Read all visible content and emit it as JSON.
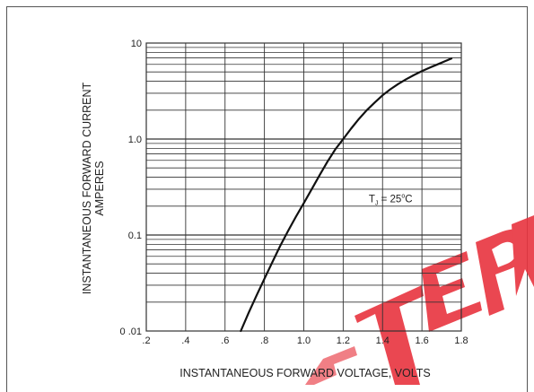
{
  "colors": {
    "grid": "#333333",
    "curve": "#111111",
    "watermark": "#e8343f"
  },
  "watermark": {
    "text": "TEPM"
  },
  "chart_data": {
    "type": "line",
    "title": "",
    "xlabel": "INSTANTANEOUS FORWARD VOLTAGE, VOLTS",
    "ylabel_line1": "INSTANTANEOUS FORWARD CURRENT",
    "ylabel_line2": "AMPERES",
    "xlim": [
      0.2,
      1.8
    ],
    "ylim": [
      0.01,
      10
    ],
    "yscale": "log",
    "grid": true,
    "x_tick_labels": [
      ".2",
      ".4",
      ".6",
      ".8",
      "1.0",
      "1.2",
      "1.4",
      "1.6",
      "1.8"
    ],
    "y_tick_labels": [
      "0 .01",
      "0.1",
      "1.0",
      "10"
    ],
    "annotation": {
      "prefix": "T",
      "subscript": "J",
      "suffix": " = 25",
      "deg": "o",
      "unit": "C",
      "x": 1.33,
      "y": 0.22
    },
    "series": [
      {
        "x": [
          0.68,
          0.72,
          0.76,
          0.8,
          0.84,
          0.88,
          0.92,
          0.96,
          1.0,
          1.04,
          1.08,
          1.12,
          1.16,
          1.2,
          1.24,
          1.28,
          1.32,
          1.36,
          1.4,
          1.44,
          1.48,
          1.52,
          1.56,
          1.6,
          1.64,
          1.68,
          1.72,
          1.75
        ],
        "y": [
          0.01,
          0.0155,
          0.0235,
          0.035,
          0.052,
          0.077,
          0.11,
          0.155,
          0.215,
          0.3,
          0.42,
          0.58,
          0.78,
          1.0,
          1.28,
          1.62,
          2.0,
          2.4,
          2.85,
          3.3,
          3.75,
          4.2,
          4.65,
          5.1,
          5.55,
          6.0,
          6.5,
          6.9
        ]
      }
    ]
  }
}
